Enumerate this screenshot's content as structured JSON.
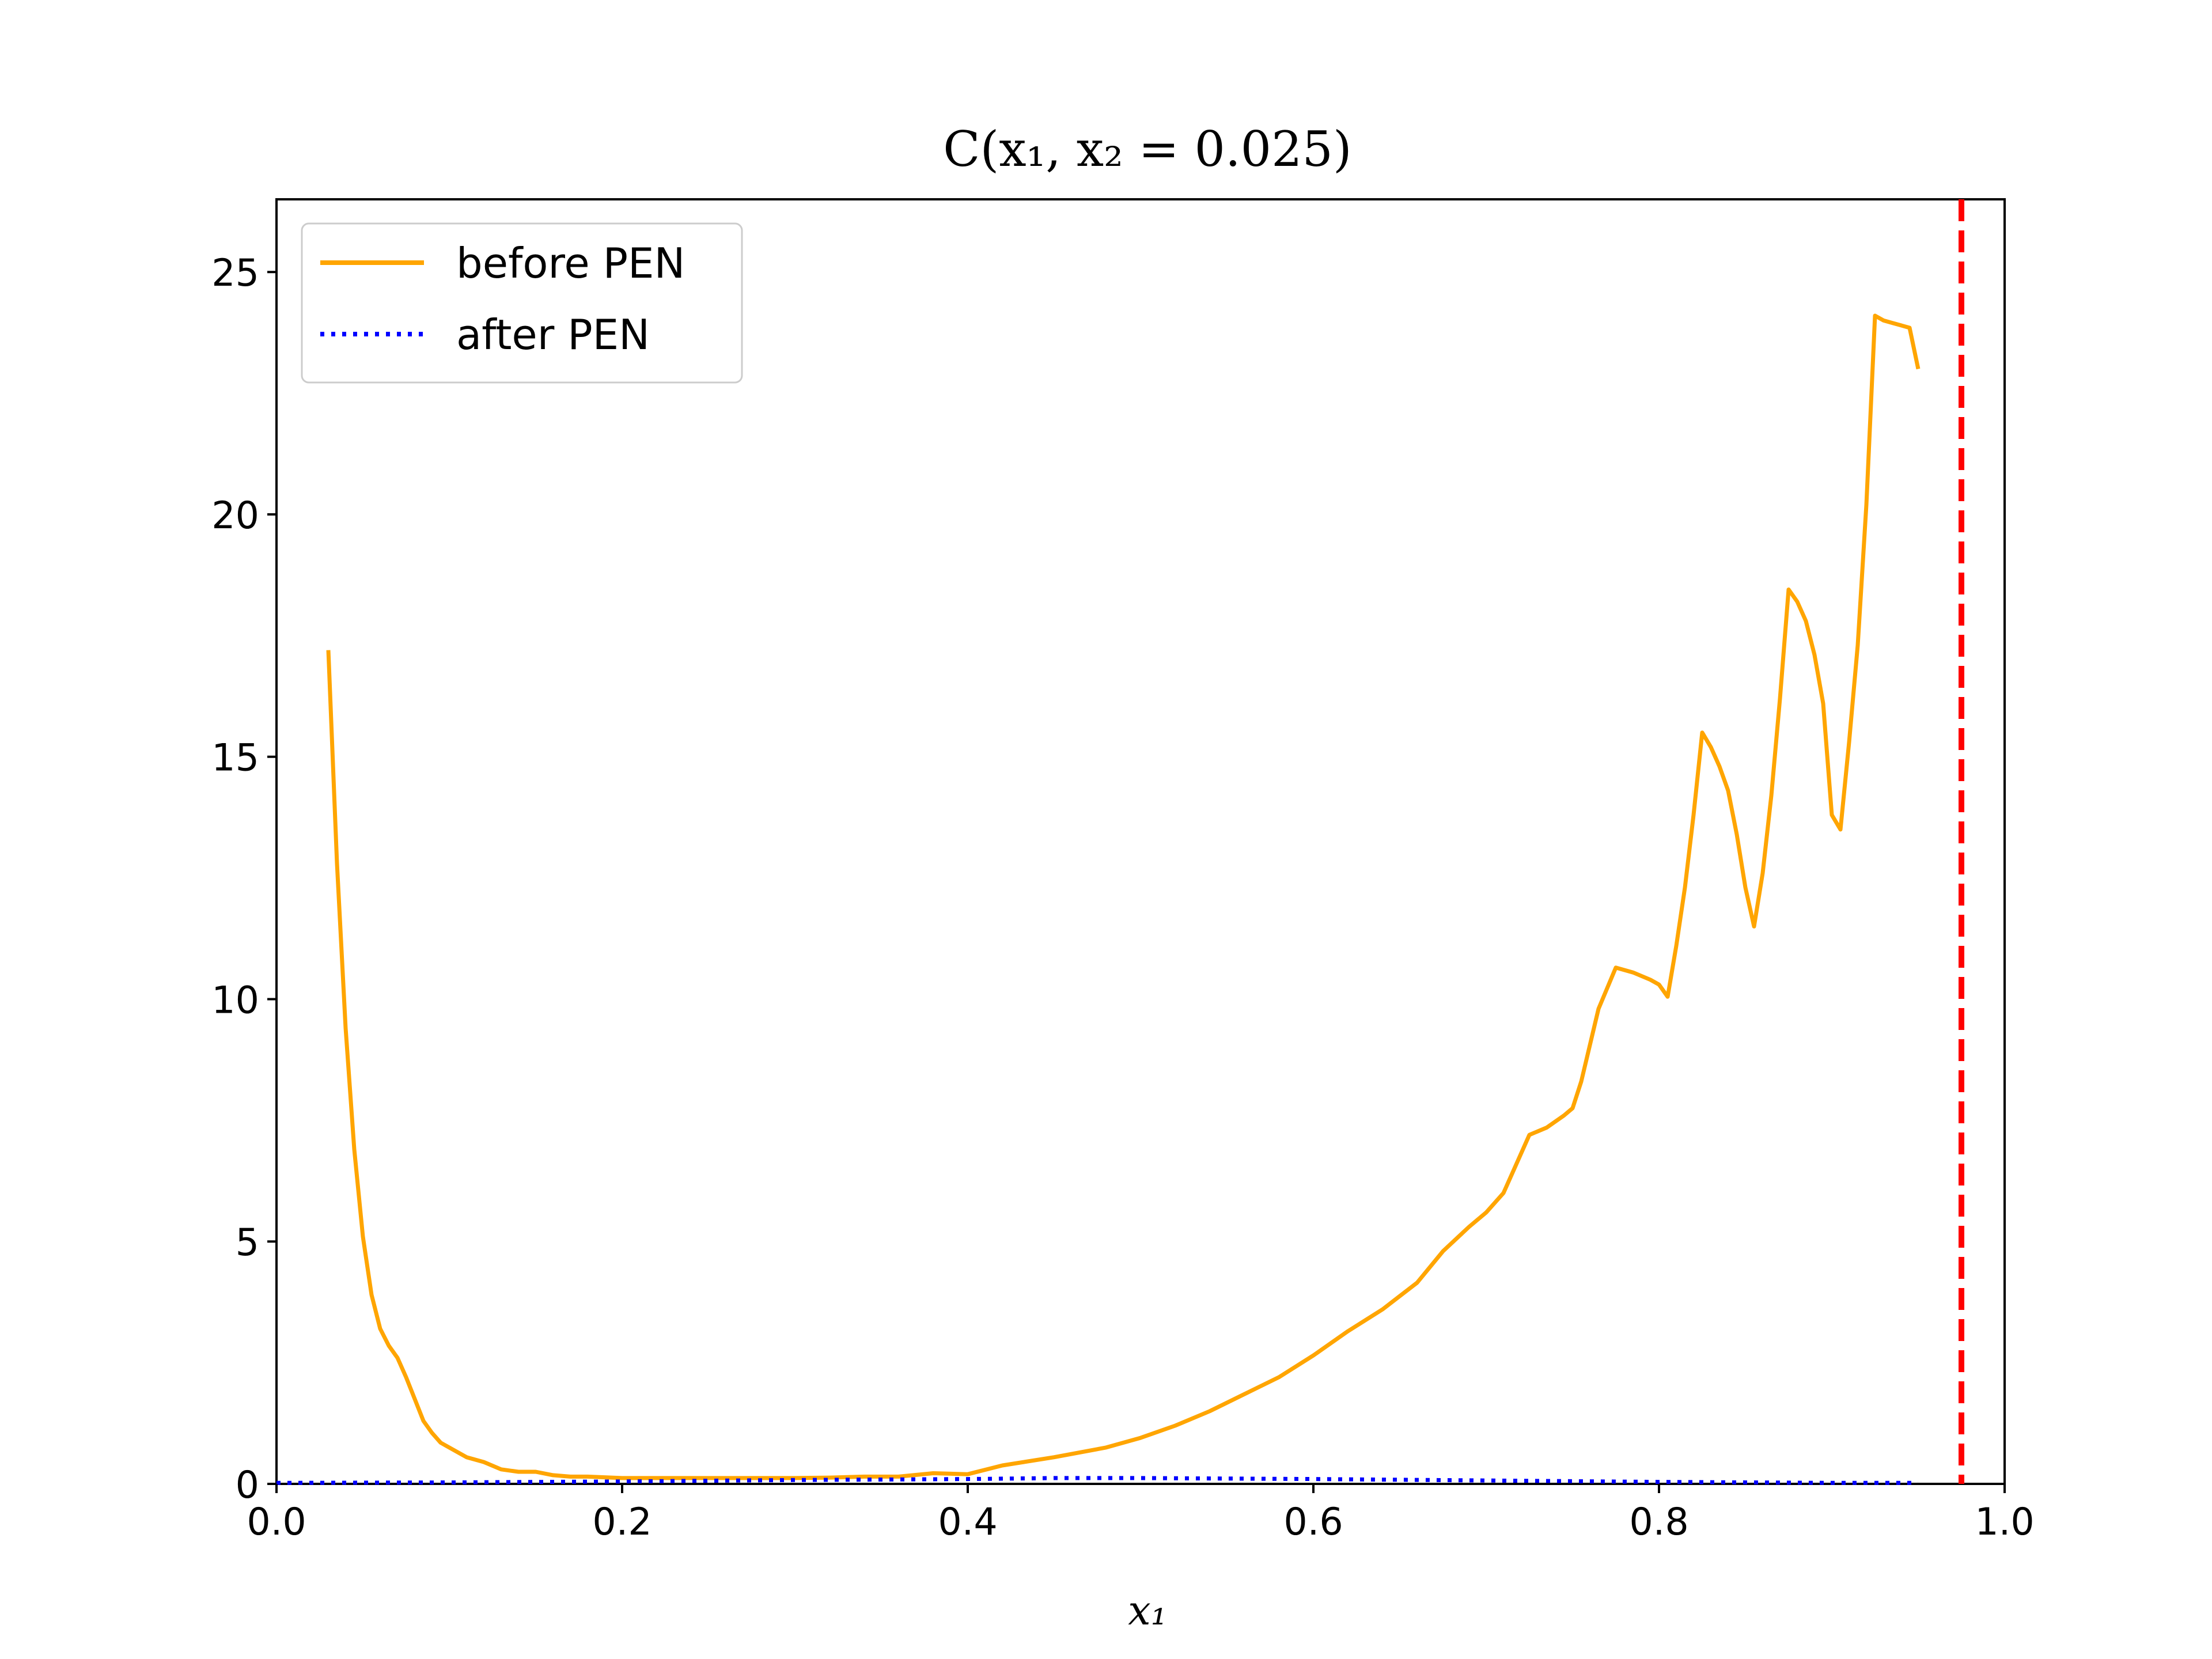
{
  "chart_data": {
    "type": "line",
    "title": "C(x₁, x₂ = 0.025)",
    "xlabel": "x₁",
    "ylabel": "",
    "xlim": [
      0.0,
      1.0
    ],
    "ylim": [
      0,
      26.5
    ],
    "xticks": [
      "0.0",
      "0.2",
      "0.4",
      "0.6",
      "0.8",
      "1.0"
    ],
    "yticks": [
      "0",
      "5",
      "10",
      "15",
      "20",
      "25"
    ],
    "grid": false,
    "legend_position": "top-left",
    "vline": {
      "x": 0.975,
      "color": "#ff0000",
      "style": "dashed"
    },
    "series": [
      {
        "name": "before PEN",
        "color": "#ffa500",
        "style": "solid",
        "x": [
          0.03,
          0.035,
          0.04,
          0.045,
          0.05,
          0.055,
          0.06,
          0.065,
          0.07,
          0.075,
          0.08,
          0.085,
          0.09,
          0.095,
          0.1,
          0.11,
          0.12,
          0.13,
          0.14,
          0.15,
          0.16,
          0.17,
          0.18,
          0.2,
          0.22,
          0.25,
          0.28,
          0.3,
          0.32,
          0.34,
          0.36,
          0.38,
          0.4,
          0.42,
          0.45,
          0.48,
          0.5,
          0.52,
          0.54,
          0.56,
          0.58,
          0.6,
          0.62,
          0.64,
          0.66,
          0.675,
          0.69,
          0.7,
          0.71,
          0.725,
          0.735,
          0.745,
          0.75,
          0.755,
          0.765,
          0.775,
          0.785,
          0.795,
          0.8,
          0.805,
          0.81,
          0.815,
          0.82,
          0.825,
          0.83,
          0.835,
          0.84,
          0.845,
          0.85,
          0.855,
          0.86,
          0.865,
          0.87,
          0.875,
          0.88,
          0.885,
          0.89,
          0.895,
          0.9,
          0.905,
          0.91,
          0.915,
          0.92,
          0.925,
          0.93,
          0.935,
          0.94,
          0.945,
          0.95
        ],
        "y": [
          17.2,
          12.8,
          9.4,
          6.9,
          5.1,
          3.9,
          3.2,
          2.85,
          2.6,
          2.2,
          1.75,
          1.3,
          1.05,
          0.85,
          0.75,
          0.55,
          0.45,
          0.3,
          0.25,
          0.25,
          0.18,
          0.15,
          0.15,
          0.12,
          0.12,
          0.12,
          0.12,
          0.12,
          0.13,
          0.15,
          0.15,
          0.22,
          0.2,
          0.38,
          0.55,
          0.75,
          0.95,
          1.2,
          1.5,
          1.85,
          2.2,
          2.65,
          3.15,
          3.6,
          4.15,
          4.8,
          5.3,
          5.6,
          6.0,
          7.2,
          7.35,
          7.6,
          7.75,
          8.3,
          9.8,
          10.65,
          10.55,
          10.4,
          10.3,
          10.05,
          11.1,
          12.3,
          13.8,
          15.5,
          15.2,
          14.8,
          14.3,
          13.4,
          12.3,
          11.5,
          12.6,
          14.2,
          16.2,
          18.45,
          18.2,
          17.8,
          17.1,
          16.1,
          13.8,
          13.5,
          15.3,
          17.3,
          20.2,
          24.1,
          24.0,
          23.95,
          23.9,
          23.85,
          23.0
        ]
      },
      {
        "name": "after PEN",
        "color": "#0000ff",
        "style": "dotted",
        "x": [
          0.0,
          0.1,
          0.2,
          0.3,
          0.4,
          0.45,
          0.5,
          0.6,
          0.7,
          0.8,
          0.9,
          0.95
        ],
        "y": [
          0.02,
          0.03,
          0.05,
          0.08,
          0.1,
          0.12,
          0.12,
          0.1,
          0.07,
          0.04,
          0.02,
          0.02
        ]
      }
    ]
  }
}
